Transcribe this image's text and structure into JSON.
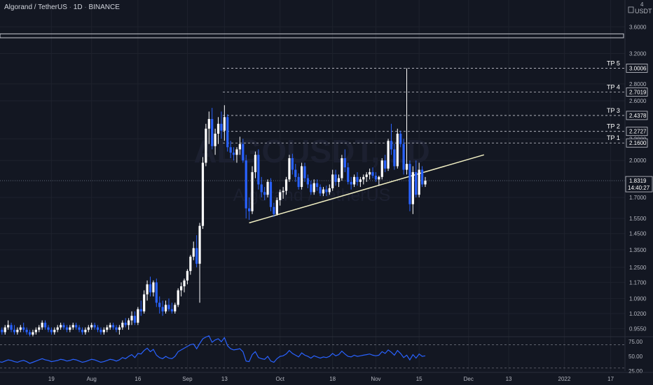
{
  "header": {
    "symbol": "Algorand / TetherUS",
    "interval": "1D",
    "exchange": "BINANCE"
  },
  "axis": {
    "currency": "USDT",
    "corner_digit": "4",
    "price_ticks": [
      "3.6000",
      "3.2000",
      "2.8000",
      "2.6000",
      "2.2000",
      "2.0000",
      "1.7000",
      "1.5500",
      "1.4500",
      "1.3500",
      "1.2500",
      "1.1700",
      "1.0900",
      "1.0200",
      "0.9550"
    ],
    "price_label": "1.8319",
    "countdown": "14:40:27",
    "rsi_ticks": [
      "75.00",
      "50.00",
      "25.00"
    ],
    "time_ticks": [
      {
        "label": "19",
        "day": 18
      },
      {
        "label": "Aug",
        "day": 31
      },
      {
        "label": "16",
        "day": 46
      },
      {
        "label": "Sep",
        "day": 62
      },
      {
        "label": "13",
        "day": 74
      },
      {
        "label": "Oct",
        "day": 92
      },
      {
        "label": "18",
        "day": 109
      },
      {
        "label": "Nov",
        "day": 123
      },
      {
        "label": "15",
        "day": 137
      },
      {
        "label": "Dec",
        "day": 153
      },
      {
        "label": "13",
        "day": 166
      },
      {
        "label": "2022",
        "day": 184
      },
      {
        "label": "17",
        "day": 199
      }
    ]
  },
  "targets": [
    {
      "label": "TP 5",
      "price": "3.0006",
      "value": 3.0006
    },
    {
      "label": "TP 4",
      "price": "2.7019",
      "value": 2.7019
    },
    {
      "label": "TP 3",
      "price": "2.4378",
      "value": 2.4378
    },
    {
      "label": "TP 2",
      "price": "2.2727",
      "value": 2.2727
    },
    {
      "label": "TP 1",
      "price": "2.1600",
      "value": 2.16
    }
  ],
  "watermark": {
    "line1": "ALGOUSDT, 1D",
    "line2": "Algorand / TetherUS"
  },
  "colors": {
    "up": "#ffffff",
    "down": "#2962ff",
    "rsi": "#2962ff",
    "trendline": "#f2f0c4",
    "grid": "#1e222d",
    "text": "#b2b5be"
  },
  "chart_data": {
    "type": "candlestick",
    "x_unit": "day index (0 = 1 Jul 2021)",
    "ylim": [
      0.93,
      4.05
    ],
    "resistance_zone": [
      3.43,
      3.49
    ],
    "trendline": {
      "start_day": 82,
      "start_price": 1.52,
      "end_day": 158,
      "end_price": 2.05
    },
    "candles": [
      [
        0,
        0.95,
        0.97,
        0.93,
        0.96
      ],
      [
        1,
        0.96,
        0.98,
        0.94,
        0.95
      ],
      [
        2,
        0.95,
        0.96,
        0.93,
        0.94
      ],
      [
        3,
        0.94,
        0.97,
        0.93,
        0.96
      ],
      [
        4,
        0.96,
        0.99,
        0.95,
        0.97
      ],
      [
        5,
        0.97,
        0.98,
        0.94,
        0.95
      ],
      [
        6,
        0.95,
        0.97,
        0.93,
        0.94
      ],
      [
        7,
        0.94,
        0.96,
        0.93,
        0.95
      ],
      [
        8,
        0.95,
        0.97,
        0.94,
        0.96
      ],
      [
        9,
        0.96,
        0.98,
        0.94,
        0.95
      ],
      [
        10,
        0.95,
        0.96,
        0.93,
        0.94
      ],
      [
        11,
        0.94,
        0.95,
        0.92,
        0.93
      ],
      [
        12,
        0.93,
        0.95,
        0.92,
        0.94
      ],
      [
        13,
        0.94,
        0.96,
        0.93,
        0.95
      ],
      [
        14,
        0.95,
        0.97,
        0.94,
        0.96
      ],
      [
        15,
        0.96,
        0.99,
        0.95,
        0.98
      ],
      [
        16,
        0.98,
        0.99,
        0.95,
        0.96
      ],
      [
        17,
        0.96,
        0.97,
        0.94,
        0.95
      ],
      [
        18,
        0.95,
        0.96,
        0.93,
        0.94
      ],
      [
        19,
        0.94,
        0.96,
        0.93,
        0.95
      ],
      [
        20,
        0.95,
        0.97,
        0.94,
        0.96
      ],
      [
        21,
        0.96,
        0.98,
        0.95,
        0.97
      ],
      [
        22,
        0.97,
        0.98,
        0.95,
        0.96
      ],
      [
        23,
        0.96,
        0.97,
        0.94,
        0.95
      ],
      [
        24,
        0.95,
        0.97,
        0.94,
        0.96
      ],
      [
        25,
        0.96,
        0.98,
        0.95,
        0.97
      ],
      [
        26,
        0.97,
        0.98,
        0.95,
        0.96
      ],
      [
        27,
        0.96,
        0.97,
        0.94,
        0.95
      ],
      [
        28,
        0.95,
        0.96,
        0.93,
        0.94
      ],
      [
        29,
        0.94,
        0.96,
        0.93,
        0.95
      ],
      [
        30,
        0.95,
        0.97,
        0.94,
        0.96
      ],
      [
        31,
        0.96,
        0.98,
        0.95,
        0.97
      ],
      [
        32,
        0.97,
        0.98,
        0.95,
        0.96
      ],
      [
        33,
        0.96,
        0.97,
        0.94,
        0.95
      ],
      [
        34,
        0.95,
        0.96,
        0.93,
        0.94
      ],
      [
        35,
        0.94,
        0.96,
        0.93,
        0.95
      ],
      [
        36,
        0.95,
        0.97,
        0.94,
        0.96
      ],
      [
        37,
        0.96,
        0.98,
        0.95,
        0.97
      ],
      [
        38,
        0.97,
        0.98,
        0.95,
        0.96
      ],
      [
        39,
        0.96,
        0.97,
        0.94,
        0.95
      ],
      [
        40,
        0.95,
        0.97,
        0.93,
        0.96
      ],
      [
        41,
        0.96,
        0.99,
        0.95,
        0.98
      ],
      [
        42,
        0.98,
        1.0,
        0.96,
        0.97
      ],
      [
        43,
        0.97,
        1.0,
        0.95,
        0.99
      ],
      [
        44,
        0.99,
        1.03,
        0.97,
        1.01
      ],
      [
        45,
        1.01,
        1.03,
        0.97,
        0.98
      ],
      [
        46,
        0.98,
        1.05,
        0.97,
        1.04
      ],
      [
        47,
        1.04,
        1.08,
        1.01,
        1.03
      ],
      [
        48,
        1.03,
        1.13,
        1.02,
        1.11
      ],
      [
        49,
        1.11,
        1.18,
        1.08,
        1.16
      ],
      [
        50,
        1.16,
        1.2,
        1.1,
        1.12
      ],
      [
        51,
        1.12,
        1.18,
        1.1,
        1.17
      ],
      [
        52,
        1.17,
        1.19,
        1.05,
        1.07
      ],
      [
        53,
        1.07,
        1.1,
        1.02,
        1.05
      ],
      [
        54,
        1.05,
        1.08,
        1.01,
        1.03
      ],
      [
        55,
        1.03,
        1.08,
        1.02,
        1.06
      ],
      [
        56,
        1.06,
        1.09,
        1.03,
        1.04
      ],
      [
        57,
        1.04,
        1.07,
        1.02,
        1.03
      ],
      [
        58,
        1.03,
        1.07,
        1.02,
        1.06
      ],
      [
        59,
        1.06,
        1.14,
        1.05,
        1.13
      ],
      [
        60,
        1.13,
        1.17,
        1.1,
        1.15
      ],
      [
        61,
        1.15,
        1.19,
        1.12,
        1.18
      ],
      [
        62,
        1.18,
        1.24,
        1.16,
        1.23
      ],
      [
        63,
        1.23,
        1.32,
        1.21,
        1.31
      ],
      [
        64,
        1.31,
        1.4,
        1.29,
        1.36
      ],
      [
        65,
        1.36,
        1.44,
        1.25,
        1.27
      ],
      [
        66,
        1.27,
        1.52,
        1.07,
        1.5
      ],
      [
        67,
        1.5,
        2.03,
        1.48,
        1.98
      ],
      [
        68,
        1.98,
        2.35,
        1.95,
        2.3
      ],
      [
        69,
        2.3,
        2.48,
        2.15,
        2.4
      ],
      [
        70,
        2.4,
        2.52,
        2.1,
        2.13
      ],
      [
        71,
        2.13,
        2.3,
        2.05,
        2.25
      ],
      [
        72,
        2.25,
        2.42,
        2.15,
        2.35
      ],
      [
        73,
        2.35,
        2.48,
        2.2,
        2.28
      ],
      [
        74,
        2.28,
        2.55,
        2.18,
        2.42
      ],
      [
        75,
        2.42,
        2.45,
        2.08,
        2.12
      ],
      [
        76,
        2.12,
        2.18,
        2.02,
        2.07
      ],
      [
        77,
        2.07,
        2.12,
        2.0,
        2.05
      ],
      [
        78,
        2.05,
        2.12,
        1.98,
        2.1
      ],
      [
        79,
        2.1,
        2.22,
        2.05,
        2.15
      ],
      [
        80,
        2.15,
        2.2,
        1.98,
        2.0
      ],
      [
        81,
        2.0,
        2.05,
        1.55,
        1.62
      ],
      [
        82,
        1.62,
        1.7,
        1.54,
        1.6
      ],
      [
        83,
        1.6,
        1.95,
        1.58,
        1.9
      ],
      [
        84,
        1.9,
        2.08,
        1.85,
        2.05
      ],
      [
        85,
        2.05,
        2.1,
        1.76,
        1.8
      ],
      [
        86,
        1.8,
        1.86,
        1.7,
        1.74
      ],
      [
        87,
        1.74,
        1.78,
        1.68,
        1.72
      ],
      [
        88,
        1.72,
        1.84,
        1.7,
        1.82
      ],
      [
        89,
        1.82,
        1.85,
        1.6,
        1.63
      ],
      [
        90,
        1.63,
        1.66,
        1.56,
        1.58
      ],
      [
        91,
        1.58,
        1.7,
        1.57,
        1.68
      ],
      [
        92,
        1.68,
        1.76,
        1.64,
        1.74
      ],
      [
        93,
        1.74,
        1.78,
        1.69,
        1.75
      ],
      [
        94,
        1.75,
        1.86,
        1.72,
        1.84
      ],
      [
        95,
        1.84,
        2.05,
        1.82,
        2.02
      ],
      [
        96,
        2.02,
        2.06,
        1.88,
        1.92
      ],
      [
        97,
        1.92,
        1.97,
        1.82,
        1.86
      ],
      [
        98,
        1.86,
        1.89,
        1.76,
        1.78
      ],
      [
        99,
        1.78,
        1.98,
        1.76,
        1.95
      ],
      [
        100,
        1.95,
        1.98,
        1.82,
        1.85
      ],
      [
        101,
        1.85,
        1.88,
        1.77,
        1.8
      ],
      [
        102,
        1.8,
        1.83,
        1.72,
        1.74
      ],
      [
        103,
        1.74,
        1.84,
        1.72,
        1.81
      ],
      [
        104,
        1.81,
        1.84,
        1.75,
        1.78
      ],
      [
        105,
        1.78,
        1.8,
        1.71,
        1.73
      ],
      [
        106,
        1.73,
        1.78,
        1.71,
        1.76
      ],
      [
        107,
        1.76,
        1.79,
        1.71,
        1.74
      ],
      [
        108,
        1.74,
        1.8,
        1.72,
        1.77
      ],
      [
        109,
        1.77,
        1.92,
        1.75,
        1.88
      ],
      [
        110,
        1.88,
        1.92,
        1.79,
        1.82
      ],
      [
        111,
        1.82,
        1.88,
        1.78,
        1.85
      ],
      [
        112,
        1.85,
        2.05,
        1.83,
        2.02
      ],
      [
        113,
        2.02,
        2.1,
        1.9,
        1.94
      ],
      [
        114,
        1.94,
        1.98,
        1.8,
        1.82
      ],
      [
        115,
        1.82,
        1.86,
        1.76,
        1.8
      ],
      [
        116,
        1.8,
        1.88,
        1.78,
        1.86
      ],
      [
        117,
        1.86,
        1.9,
        1.79,
        1.82
      ],
      [
        118,
        1.82,
        1.86,
        1.78,
        1.84
      ],
      [
        119,
        1.84,
        1.88,
        1.8,
        1.86
      ],
      [
        120,
        1.86,
        1.9,
        1.82,
        1.88
      ],
      [
        121,
        1.88,
        1.93,
        1.84,
        1.9
      ],
      [
        122,
        1.9,
        1.94,
        1.85,
        1.87
      ],
      [
        123,
        1.87,
        1.9,
        1.82,
        1.84
      ],
      [
        124,
        1.84,
        1.87,
        1.79,
        1.86
      ],
      [
        125,
        1.86,
        2.02,
        1.84,
        2.0
      ],
      [
        126,
        2.0,
        2.05,
        1.9,
        1.93
      ],
      [
        127,
        1.93,
        2.2,
        1.91,
        2.18
      ],
      [
        128,
        2.18,
        2.35,
        2.05,
        2.1
      ],
      [
        129,
        2.1,
        2.15,
        1.92,
        1.95
      ],
      [
        130,
        1.95,
        2.3,
        1.93,
        2.25
      ],
      [
        131,
        2.25,
        2.28,
        2.12,
        2.15
      ],
      [
        132,
        2.15,
        2.2,
        1.88,
        1.92
      ],
      [
        133,
        1.92,
        3.0,
        1.88,
        1.97
      ],
      [
        134,
        1.97,
        2.0,
        1.6,
        1.65
      ],
      [
        135,
        1.65,
        1.95,
        1.58,
        1.9
      ],
      [
        136,
        1.9,
        2.0,
        1.7,
        1.72
      ],
      [
        137,
        1.72,
        1.98,
        1.7,
        1.92
      ],
      [
        138,
        1.92,
        1.95,
        1.78,
        1.8
      ],
      [
        139,
        1.8,
        1.86,
        1.78,
        1.83
      ]
    ],
    "rsi": {
      "ylim": [
        25,
        80
      ],
      "levels": [
        70,
        30
      ],
      "values": [
        40,
        41,
        40,
        42,
        44,
        43,
        41,
        40,
        42,
        43,
        41,
        38,
        40,
        42,
        44,
        46,
        44,
        43,
        41,
        42,
        43,
        45,
        44,
        42,
        43,
        45,
        44,
        42,
        40,
        41,
        43,
        45,
        44,
        42,
        40,
        41,
        43,
        45,
        44,
        42,
        44,
        48,
        46,
        50,
        53,
        48,
        55,
        54,
        60,
        64,
        58,
        62,
        52,
        48,
        46,
        50,
        47,
        46,
        50,
        58,
        61,
        64,
        67,
        70,
        71,
        63,
        72,
        80,
        83,
        85,
        74,
        78,
        80,
        75,
        82,
        68,
        63,
        61,
        62,
        63,
        58,
        42,
        41,
        53,
        58,
        48,
        46,
        45,
        50,
        42,
        40,
        46,
        50,
        51,
        54,
        60,
        55,
        52,
        49,
        56,
        52,
        50,
        47,
        51,
        49,
        47,
        49,
        48,
        50,
        55,
        51,
        53,
        59,
        54,
        50,
        49,
        52,
        50,
        51,
        52,
        53,
        54,
        52,
        51,
        52,
        58,
        55,
        61,
        57,
        52,
        60,
        55,
        48,
        52,
        44,
        53,
        47,
        54,
        50,
        51
      ]
    }
  }
}
